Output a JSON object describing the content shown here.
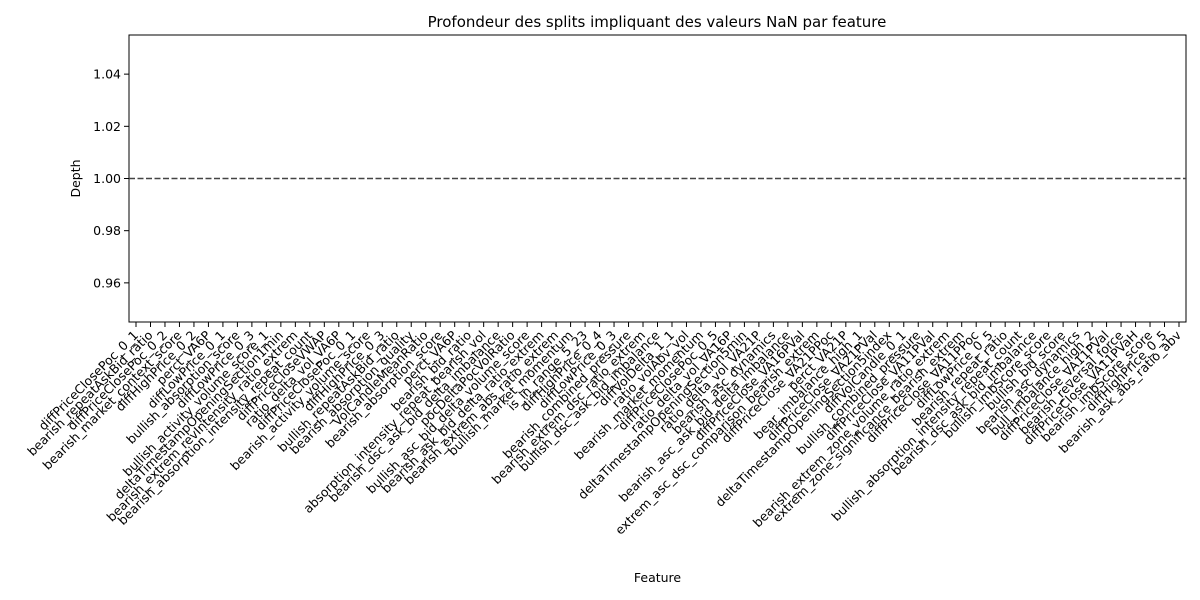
{
  "chart_data": {
    "type": "line",
    "title": "Profondeur des splits impliquant des valeurs NaN par feature",
    "xlabel": "Feature",
    "ylabel": "Depth",
    "ylim": [
      0.945,
      1.055
    ],
    "yticks": [
      0.96,
      0.98,
      1.0,
      1.02,
      1.04
    ],
    "ytick_labels": [
      "0.96",
      "0.98",
      "1.00",
      "1.02",
      "1.04"
    ],
    "grid": false,
    "legend": "none",
    "series": [
      {
        "name": "Depth",
        "style": "dashed",
        "color": "#444444",
        "constant_value": 1.0
      }
    ],
    "categories": [
      "diffPriceClosePoc_0_1",
      "bearish_repeatAskBid_ratio",
      "diffPriceClosePoc_0_2",
      "bearish_market_context_score",
      "diffHighPrice_0_2",
      "perct_VA6P",
      "diffLowPrice_0_1",
      "bullish_absorption_score",
      "diffLowPrice_0_3",
      "bullish_activity_volume_score_1",
      "deltaTimestampOpeningSection1min",
      "bearish_extrem_revIntensity_ratio_extrem",
      "bearish_absorption_intensity_repeat_count",
      "diffPriceCloseVWAP",
      "ratio_delta_vol_VA6P",
      "diffPriceClosePoc_0_1",
      "bearish_activity_volume_score",
      "diffHighPrice_0_3",
      "bullish_repeatAskBid_ratio",
      "bearish_absorption_quality",
      "VolCandleMeanRatio",
      "bearish_absorption_score",
      "perct_VA6P",
      "bearish_bid_ratio",
      "absorption_intensity_repeat_bearish_vol",
      "bearish_dsc_ask_bid_delta_imbalance",
      "pocDeltaPocVolRatio",
      "bullish_asc_bid_delta_volume_score",
      "bearish_ask_bid_delta_ratio_extrem",
      "bearish_extrem_abs_ratio_extrem",
      "bullish_market_momentum",
      "is_in_range_5_23",
      "diffHighPrice_0_4",
      "diffLowPrice_0_3",
      "bearish_combined_pressure",
      "bearish_extrem_dsc_ratio_extrem",
      "bullish_dsc_ask_bid_imbalance",
      "diffVolDelta_1_1",
      "ratio_volAbv_vol",
      "bearish_market_momentum",
      "diffPriceClosePoc_0_5",
      "ratio_delta_vol_VA16P",
      "deltaTimestampOpeningSection5min",
      "ratio_delta_vol_VA21P",
      "bearish_asc_dynamics",
      "bearish_asc_ask_bid_delta_imbalance",
      "diffPriceClose_VA16PVal",
      "extrem_asc_dsc_comparison_bearish_extrem",
      "diffPriceClose_VA21PPoc",
      "perct_VA21P",
      "bear_imbalance_high_1",
      "diffPriceClose_VA21PVal",
      "deltaTimestampOpeningSection5index",
      "diffVolCandle_0_1",
      "bullish_combined_pressure",
      "diffPriceClose_VA11PVal",
      "bearish_extrem_zone_volume_ratio_extrem",
      "extrem_zone_significance_bearish_extrem",
      "diffPriceClose_VA11PPoc",
      "diffLowPrice_0_5",
      "bearish_repeat_ratio",
      "bullish_absorption_intensity_repeat_count",
      "bearish_dsc_ask_bid_imbalance",
      "bullish_imbScore_score",
      "bullish_bid_score",
      "bearish_asc_dynamics",
      "bull_imbalance_high_2",
      "diffPriceClose_VA11PVal",
      "bearish_reversal_force",
      "diffPriceClose_VA11PVaH",
      "bearish_imbScore_score",
      "diffHighPrice_0_5",
      "bearish_ask_abs_ratio_abv"
    ]
  }
}
